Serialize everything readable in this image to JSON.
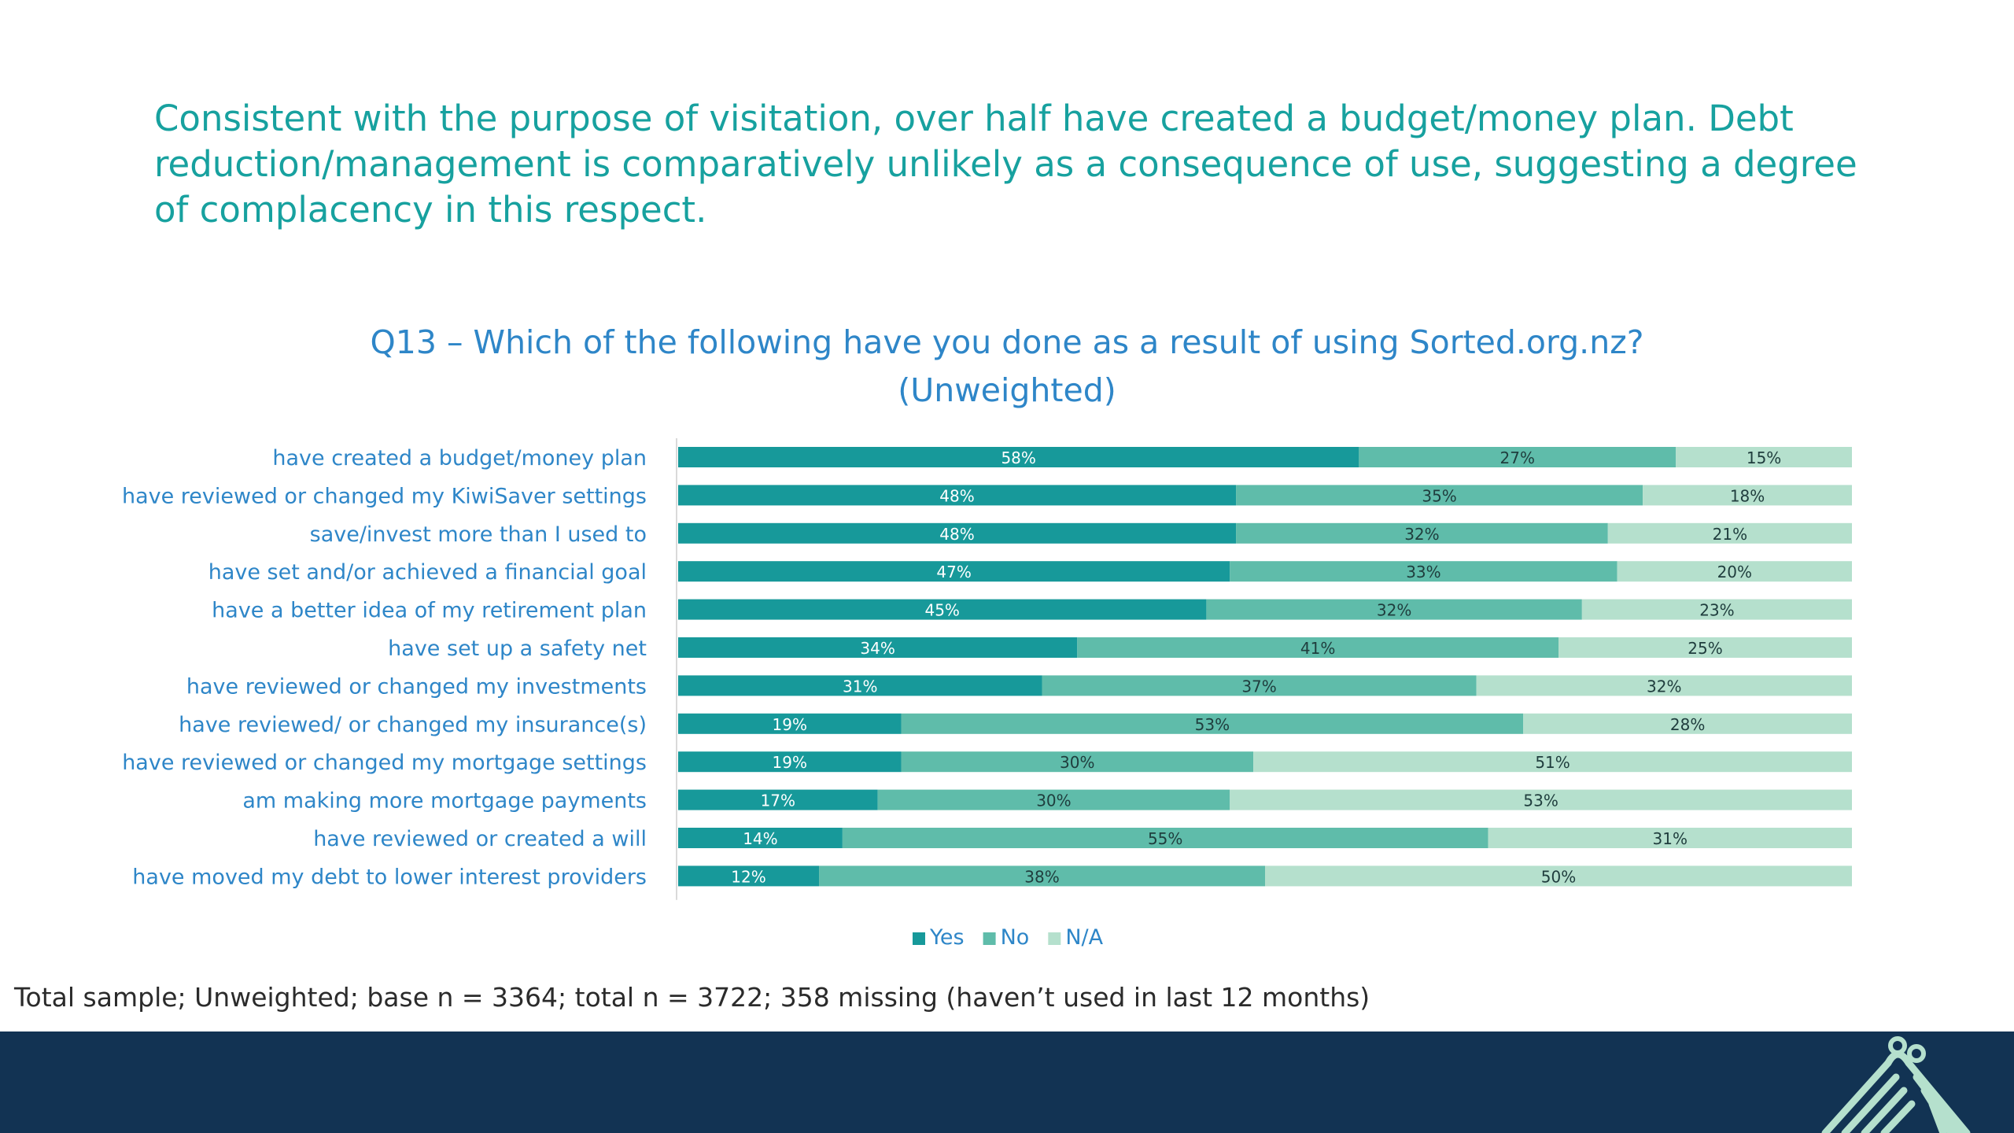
{
  "headline": "Consistent with the purpose of visitation, over half have created a budget/money plan. Debt reduction/management is comparatively unlikely as a consequence of use, suggesting a degree of complacency in this respect.",
  "footnote": "Total sample; Unweighted; base n = 3364; total n = 3722; 358 missing (haven’t used in last 12 months)",
  "colors": {
    "yes": "#17999a",
    "no": "#5fbcaa",
    "na": "#b5e0cd",
    "headline": "#17a19f",
    "title": "#2e86c8",
    "footer": "#123353"
  },
  "chart_data": {
    "type": "bar",
    "orientation": "horizontal",
    "stacked": true,
    "percent_stacked": true,
    "title": "Q13 – Which of the following have you done as a result of using Sorted.org.nz?",
    "subtitle": "(Unweighted)",
    "legend_position": "bottom",
    "categories": [
      "have created a budget/money plan",
      "have reviewed or changed my KiwiSaver settings",
      "save/invest more than I used to",
      "have set and/or achieved a financial goal",
      "have a better idea of my retirement plan",
      "have set up a safety net",
      "have reviewed or changed my investments",
      "have reviewed/ or changed my insurance(s)",
      "have reviewed or changed my mortgage settings",
      "am making more mortgage payments",
      "have reviewed or created a will",
      "have moved my debt to lower interest providers"
    ],
    "series": [
      {
        "name": "Yes",
        "values": [
          58,
          48,
          48,
          47,
          45,
          34,
          31,
          19,
          19,
          17,
          14,
          12
        ]
      },
      {
        "name": "No",
        "values": [
          27,
          35,
          32,
          33,
          32,
          41,
          37,
          53,
          30,
          30,
          55,
          38
        ]
      },
      {
        "name": "N/A",
        "values": [
          15,
          18,
          21,
          20,
          23,
          25,
          32,
          28,
          51,
          53,
          31,
          50
        ]
      }
    ],
    "value_suffix": "%"
  }
}
